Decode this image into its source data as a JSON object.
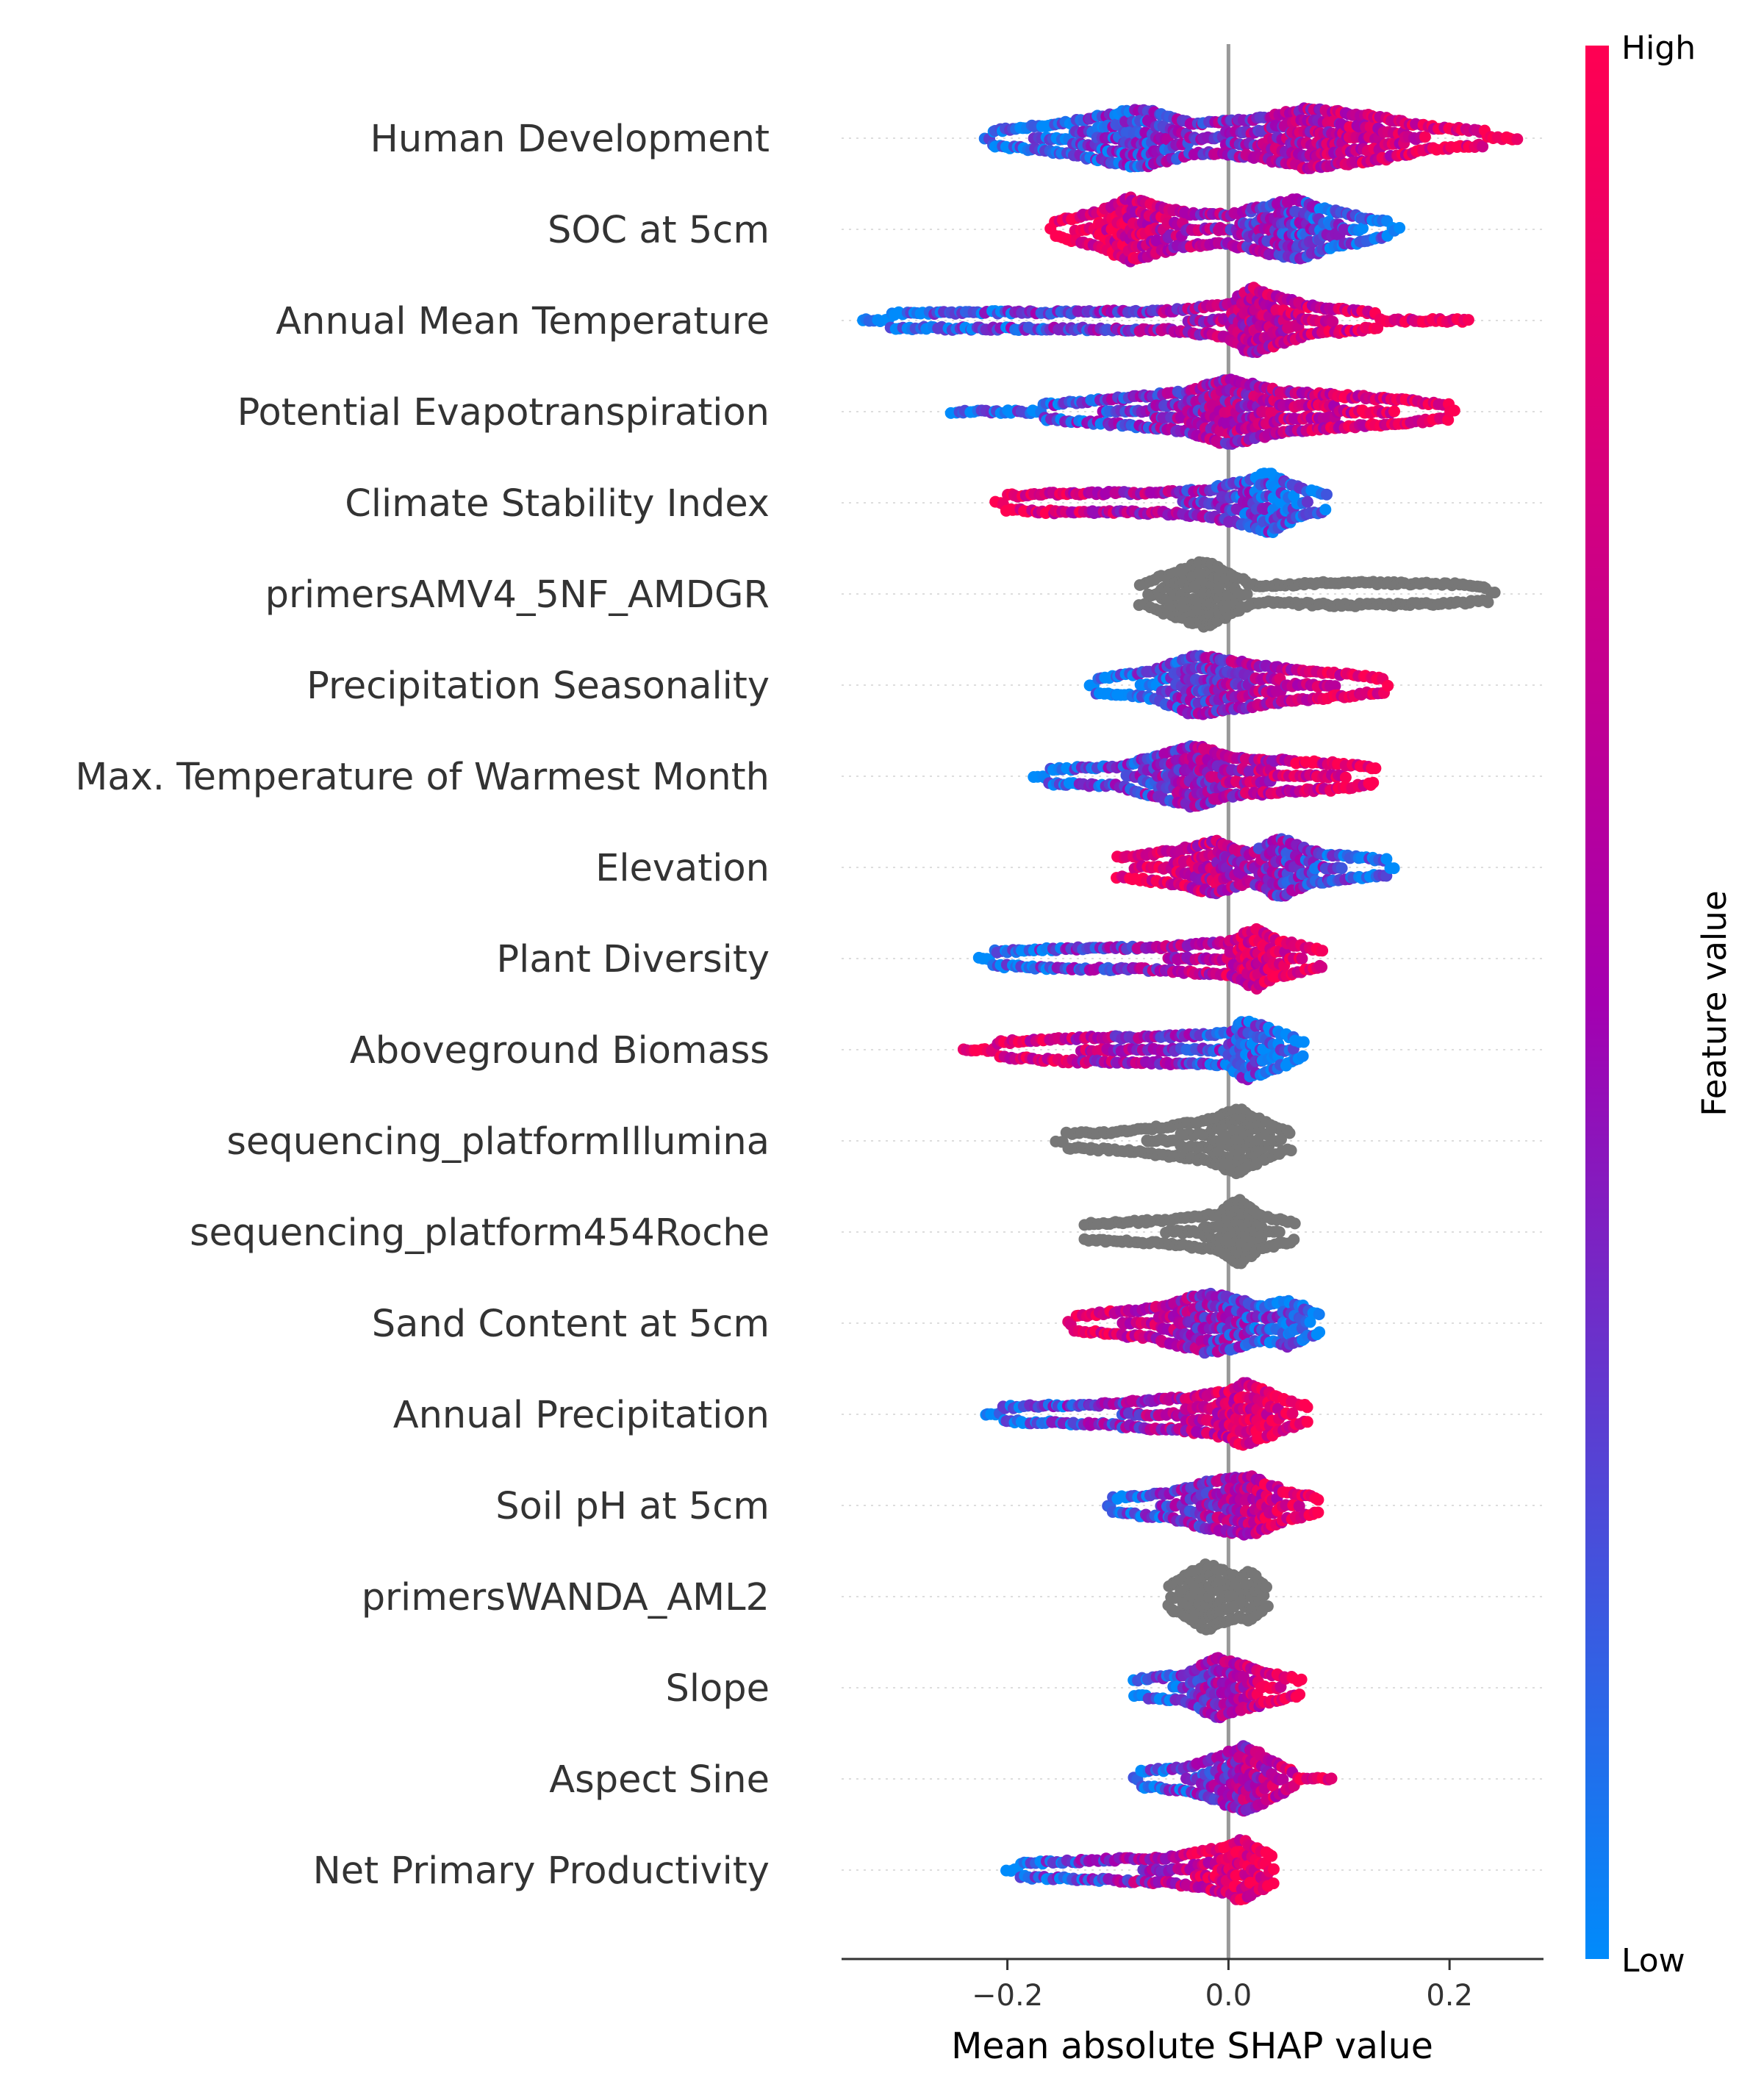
{
  "chart_data": {
    "type": "scatter",
    "subtype": "shap-beeswarm",
    "title": "",
    "xlabel": "Mean absolute SHAP value",
    "ylabel": "",
    "xlim": [
      -0.35,
      0.285
    ],
    "xticks": [
      -0.2,
      0.0,
      0.2
    ],
    "xtick_labels": [
      "−0.2",
      "0.0",
      "0.2"
    ],
    "zero_line": 0.0,
    "colorbar": {
      "title": "Feature value",
      "high_label": "High",
      "low_label": "Low",
      "low_color": "#008bfb",
      "high_color": "#ff0052",
      "mid_color": "#a400b0",
      "categorical_color": "#777777"
    },
    "features": [
      {
        "name": "Human Development",
        "min": -0.22,
        "max": 0.26,
        "density": [
          [
            -0.22,
            0.2
          ],
          [
            -0.15,
            0.45
          ],
          [
            -0.08,
            0.9
          ],
          [
            -0.03,
            0.45
          ],
          [
            0.02,
            0.55
          ],
          [
            0.07,
            0.9
          ],
          [
            0.13,
            0.7
          ],
          [
            0.18,
            0.35
          ],
          [
            0.22,
            0.25
          ],
          [
            0.26,
            0.15
          ]
        ],
        "color_trend": "increasing",
        "categorical": false
      },
      {
        "name": "SOC at 5cm",
        "min": -0.16,
        "max": 0.155,
        "density": [
          [
            -0.16,
            0.2
          ],
          [
            -0.12,
            0.5
          ],
          [
            -0.09,
            0.95
          ],
          [
            -0.04,
            0.5
          ],
          [
            0.0,
            0.45
          ],
          [
            0.06,
            0.9
          ],
          [
            0.1,
            0.5
          ],
          [
            0.155,
            0.15
          ]
        ],
        "color_trend": "decreasing",
        "categorical": false
      },
      {
        "name": "Annual Mean Temperature",
        "min": -0.33,
        "max": 0.22,
        "density": [
          [
            -0.33,
            0.2
          ],
          [
            -0.25,
            0.25
          ],
          [
            -0.15,
            0.25
          ],
          [
            -0.05,
            0.3
          ],
          [
            0.0,
            0.5
          ],
          [
            0.02,
            1.0
          ],
          [
            0.07,
            0.45
          ],
          [
            0.14,
            0.2
          ],
          [
            0.18,
            0.15
          ],
          [
            0.22,
            0.15
          ]
        ],
        "color_trend": "increasing",
        "categorical": false
      },
      {
        "name": "Potential Evapotranspiration",
        "min": -0.25,
        "max": 0.205,
        "density": [
          [
            -0.25,
            0.15
          ],
          [
            -0.19,
            0.15
          ],
          [
            -0.1,
            0.4
          ],
          [
            -0.04,
            0.6
          ],
          [
            0.0,
            1.0
          ],
          [
            0.05,
            0.6
          ],
          [
            0.12,
            0.45
          ],
          [
            0.205,
            0.2
          ]
        ],
        "color_trend": "increasing",
        "categorical": false
      },
      {
        "name": "Climate Stability Index",
        "min": -0.21,
        "max": 0.09,
        "density": [
          [
            -0.21,
            0.2
          ],
          [
            -0.15,
            0.3
          ],
          [
            -0.07,
            0.3
          ],
          [
            -0.02,
            0.4
          ],
          [
            0.02,
            0.7
          ],
          [
            0.035,
            0.95
          ],
          [
            0.06,
            0.5
          ],
          [
            0.09,
            0.2
          ]
        ],
        "color_trend": "decreasing",
        "categorical": false
      },
      {
        "name": "primersAMV4_5NF_AMDGR",
        "min": -0.08,
        "max": 0.24,
        "density": [
          [
            -0.08,
            0.3
          ],
          [
            -0.03,
            0.9
          ],
          [
            -0.02,
            1.0
          ],
          [
            0.02,
            0.3
          ],
          [
            0.03,
            0.25
          ],
          [
            0.1,
            0.35
          ],
          [
            0.2,
            0.3
          ],
          [
            0.24,
            0.2
          ]
        ],
        "color_trend": "none",
        "categorical": true
      },
      {
        "name": "Precipitation Seasonality",
        "min": -0.125,
        "max": 0.145,
        "density": [
          [
            -0.125,
            0.2
          ],
          [
            -0.07,
            0.4
          ],
          [
            -0.03,
            0.9
          ],
          [
            0.0,
            0.75
          ],
          [
            0.05,
            0.5
          ],
          [
            0.1,
            0.35
          ],
          [
            0.145,
            0.2
          ]
        ],
        "color_trend": "increasing",
        "categorical": false
      },
      {
        "name": "Max. Temperature of Warmest Month",
        "min": -0.175,
        "max": 0.135,
        "density": [
          [
            -0.175,
            0.2
          ],
          [
            -0.1,
            0.3
          ],
          [
            -0.03,
            0.95
          ],
          [
            0.0,
            0.6
          ],
          [
            0.06,
            0.45
          ],
          [
            0.1,
            0.4
          ],
          [
            0.135,
            0.2
          ]
        ],
        "color_trend": "increasing",
        "categorical": false
      },
      {
        "name": "Elevation",
        "min": -0.1,
        "max": 0.15,
        "density": [
          [
            -0.1,
            0.3
          ],
          [
            -0.05,
            0.5
          ],
          [
            -0.01,
            0.8
          ],
          [
            0.02,
            0.4
          ],
          [
            0.045,
            0.9
          ],
          [
            0.08,
            0.45
          ],
          [
            0.12,
            0.3
          ],
          [
            0.15,
            0.2
          ]
        ],
        "color_trend": "decreasing",
        "categorical": false
      },
      {
        "name": "Plant Diversity",
        "min": -0.225,
        "max": 0.088,
        "density": [
          [
            -0.225,
            0.2
          ],
          [
            -0.15,
            0.3
          ],
          [
            -0.06,
            0.35
          ],
          [
            0.0,
            0.5
          ],
          [
            0.025,
            0.9
          ],
          [
            0.04,
            0.6
          ],
          [
            0.088,
            0.2
          ]
        ],
        "color_trend": "increasing",
        "categorical": false
      },
      {
        "name": "Aboveground Biomass",
        "min": -0.24,
        "max": 0.07,
        "density": [
          [
            -0.24,
            0.15
          ],
          [
            -0.15,
            0.35
          ],
          [
            -0.06,
            0.4
          ],
          [
            0.0,
            0.5
          ],
          [
            0.015,
            0.9
          ],
          [
            0.04,
            0.6
          ],
          [
            0.07,
            0.2
          ]
        ],
        "color_trend": "decreasing",
        "categorical": false
      },
      {
        "name": "sequencing_platformIllumina",
        "min": -0.155,
        "max": 0.057,
        "density": [
          [
            -0.155,
            0.2
          ],
          [
            -0.09,
            0.3
          ],
          [
            -0.02,
            0.6
          ],
          [
            0.01,
            1.0
          ],
          [
            0.03,
            0.6
          ],
          [
            0.057,
            0.25
          ]
        ],
        "color_trend": "none",
        "categorical": true
      },
      {
        "name": "sequencing_platform454Roche",
        "min": -0.13,
        "max": 0.06,
        "density": [
          [
            -0.13,
            0.25
          ],
          [
            -0.06,
            0.35
          ],
          [
            -0.01,
            0.55
          ],
          [
            0.01,
            1.0
          ],
          [
            0.03,
            0.5
          ],
          [
            0.06,
            0.25
          ]
        ],
        "color_trend": "none",
        "categorical": true
      },
      {
        "name": "Sand Content at 5cm",
        "min": -0.145,
        "max": 0.085,
        "density": [
          [
            -0.145,
            0.2
          ],
          [
            -0.07,
            0.45
          ],
          [
            -0.02,
            0.9
          ],
          [
            0.0,
            0.8
          ],
          [
            0.03,
            0.5
          ],
          [
            0.055,
            0.7
          ],
          [
            0.085,
            0.2
          ]
        ],
        "color_trend": "decreasing",
        "categorical": false
      },
      {
        "name": "Annual Precipitation",
        "min": -0.22,
        "max": 0.073,
        "density": [
          [
            -0.22,
            0.2
          ],
          [
            -0.12,
            0.3
          ],
          [
            -0.04,
            0.5
          ],
          [
            0.0,
            0.7
          ],
          [
            0.015,
            0.95
          ],
          [
            0.04,
            0.6
          ],
          [
            0.073,
            0.2
          ]
        ],
        "color_trend": "increasing",
        "categorical": false
      },
      {
        "name": "Soil pH at 5cm",
        "min": -0.11,
        "max": 0.085,
        "density": [
          [
            -0.11,
            0.2
          ],
          [
            -0.05,
            0.4
          ],
          [
            -0.02,
            0.7
          ],
          [
            0.02,
            0.9
          ],
          [
            0.05,
            0.45
          ],
          [
            0.085,
            0.2
          ]
        ],
        "color_trend": "increasing",
        "categorical": false
      },
      {
        "name": "primersWANDA_AML2",
        "min": -0.055,
        "max": 0.035,
        "density": [
          [
            -0.055,
            0.3
          ],
          [
            -0.03,
            0.8
          ],
          [
            -0.02,
            1.0
          ],
          [
            0.01,
            0.6
          ],
          [
            0.02,
            0.75
          ],
          [
            0.035,
            0.3
          ]
        ],
        "color_trend": "none",
        "categorical": true
      },
      {
        "name": "Slope",
        "min": -0.085,
        "max": 0.068,
        "density": [
          [
            -0.085,
            0.25
          ],
          [
            -0.04,
            0.4
          ],
          [
            -0.01,
            0.9
          ],
          [
            0.01,
            0.7
          ],
          [
            0.03,
            0.5
          ],
          [
            0.068,
            0.2
          ]
        ],
        "color_trend": "increasing",
        "categorical": false
      },
      {
        "name": "Aspect Sine",
        "min": -0.085,
        "max": 0.095,
        "density": [
          [
            -0.085,
            0.2
          ],
          [
            -0.04,
            0.35
          ],
          [
            -0.01,
            0.65
          ],
          [
            0.015,
            1.0
          ],
          [
            0.04,
            0.55
          ],
          [
            0.06,
            0.2
          ],
          [
            0.095,
            0.15
          ]
        ],
        "color_trend": "increasing",
        "categorical": false
      },
      {
        "name": "Net Primary Productivity",
        "min": -0.2,
        "max": 0.04,
        "density": [
          [
            -0.2,
            0.2
          ],
          [
            -0.12,
            0.3
          ],
          [
            -0.05,
            0.4
          ],
          [
            0.0,
            0.7
          ],
          [
            0.01,
            0.95
          ],
          [
            0.04,
            0.4
          ]
        ],
        "color_trend": "increasing",
        "categorical": false
      }
    ]
  }
}
